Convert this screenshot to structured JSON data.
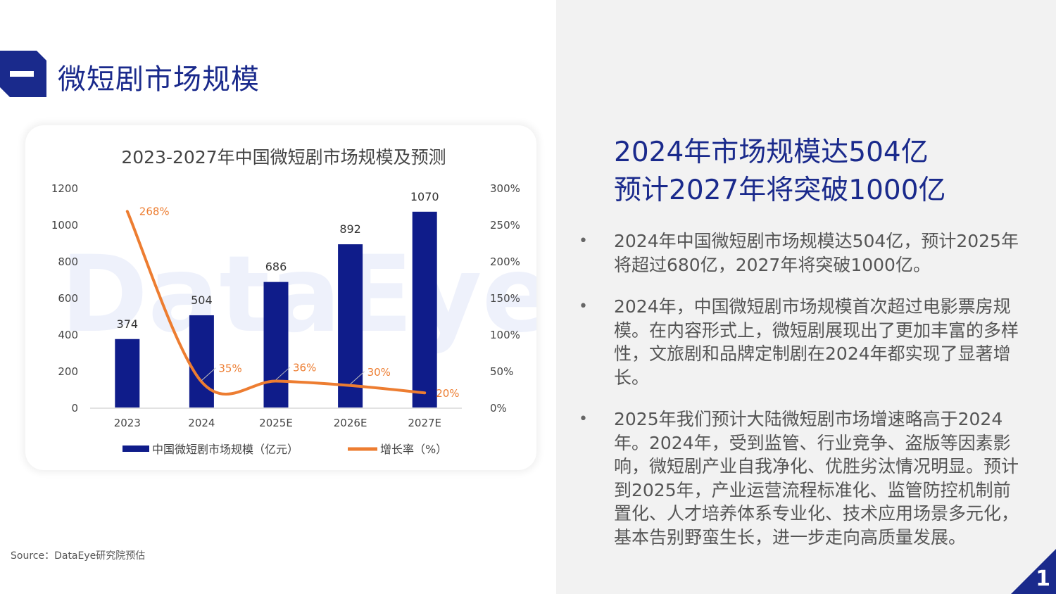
{
  "section": {
    "title": "微短剧市场规模"
  },
  "headline": {
    "line1": "2024年市场规模达504亿",
    "line2": "预计2027年将突破1000亿"
  },
  "bullets": [
    {
      "dot": "•",
      "text": "2024年中国微短剧市场规模达504亿，预计2025年将超过680亿，2027年将突破1000亿。"
    },
    {
      "dot": "•",
      "text": "2024年，中国微短剧市场规模首次超过电影票房规模。在内容形式上，微短剧展现出了更加丰富的多样性，文旅剧和品牌定制剧在2024年都实现了显著增长。"
    },
    {
      "dot": "•",
      "text": "2025年我们预计大陆微短剧市场增速略高于2024年。2024年，受到监管、行业竞争、盗版等因素影响，微短剧产业自我净化、优胜劣汰情况明显。预计到2025年，产业运营流程标准化、监管防控机制前置化、人才培养体系专业化、技术应用场景多元化，基本告别野蛮生长，进一步走向高质量发展。"
    }
  ],
  "source": "Source：DataEye研究院预估",
  "page_number": "1",
  "colors": {
    "brand_blue": "#1a2a8c",
    "bar_navy": "#0f1c8a",
    "line_orange": "#ed7d31",
    "panel_gray": "#f2f2f2"
  },
  "chart_data": {
    "type": "bar",
    "title": "2023-2027年中国微短剧市场规模及预测",
    "watermark": "DataEye",
    "categories": [
      "2023",
      "2024",
      "2025E",
      "2026E",
      "2027E"
    ],
    "series": [
      {
        "name": "中国微短剧市场规模（亿元）",
        "type": "bar",
        "axis": "left",
        "values": [
          374,
          504,
          686,
          892,
          1070
        ],
        "labels": [
          "374",
          "504",
          "686",
          "892",
          "1070"
        ]
      },
      {
        "name": "增长率（%）",
        "type": "line",
        "axis": "right",
        "values": [
          268,
          35,
          36,
          30,
          20
        ],
        "labels": [
          "268%",
          "35%",
          "36%",
          "30%",
          "20%"
        ]
      }
    ],
    "y_left": {
      "min": 0,
      "max": 1200,
      "ticks": [
        "0",
        "200",
        "400",
        "600",
        "800",
        "1000",
        "1200"
      ]
    },
    "y_right": {
      "min": 0,
      "max": 300,
      "ticks": [
        "0%",
        "50%",
        "100%",
        "150%",
        "200%",
        "250%",
        "300%"
      ]
    },
    "grid": false,
    "legend_position": "bottom"
  }
}
